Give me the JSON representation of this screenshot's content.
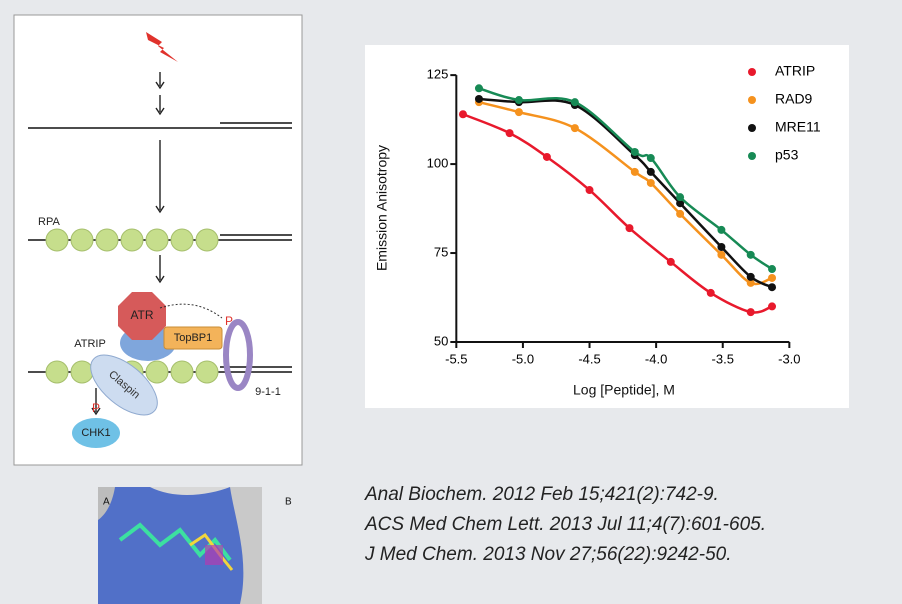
{
  "diagram": {
    "rpa": "RPA",
    "atr": "ATR",
    "atrip": "ATRIP",
    "topbp1": "TopBP1",
    "p_top": "P",
    "claspin": "Claspin",
    "p_bottom": "P",
    "chk1": "CHK1",
    "clamp": "9-1-1"
  },
  "chart_data": {
    "type": "scatter",
    "y_label": "Emission Anisotropy",
    "x_label": "Log [Peptide], M",
    "xlim": [
      -5.6,
      -2.95
    ],
    "ylim": [
      50,
      127
    ],
    "xticks": [
      -5.5,
      {
        "value": -5,
        "label": "-5.0"
      },
      -4.5,
      {
        "value": -4,
        "label": "-4.0"
      },
      -3.5,
      {
        "value": -3,
        "label": "-3.0"
      }
    ],
    "yticks": [
      50,
      75,
      100,
      125
    ],
    "legend": "top-right",
    "series": [
      {
        "name": "ATRIP",
        "color": "#e8192c",
        "x": [
          -5.45,
          -5.1,
          -4.82,
          -4.5,
          -4.2,
          -3.89,
          -3.59,
          -3.29,
          -3.13
        ],
        "values": [
          114,
          108.7,
          102,
          92.7,
          82,
          72.5,
          63.8,
          58.4,
          60
        ]
      },
      {
        "name": "RAD9",
        "color": "#f5921e",
        "x": [
          -5.33,
          -5.03,
          -4.61,
          -4.16,
          -4.04,
          -3.82,
          -3.51,
          -3.29,
          -3.13
        ],
        "values": [
          117.4,
          114.6,
          110.1,
          97.8,
          94.7,
          86,
          74.5,
          66.6,
          68
        ]
      },
      {
        "name": "MRE11",
        "color": "#111111",
        "x": [
          -5.33,
          -5.03,
          -4.61,
          -4.16,
          -4.04,
          -3.82,
          -3.51,
          -3.29,
          -3.13
        ],
        "values": [
          118.3,
          117.4,
          116.6,
          102.5,
          97.8,
          89,
          76.7,
          68.3,
          65.4
        ]
      },
      {
        "name": "p53",
        "color": "#178a55",
        "x": [
          -5.33,
          -5.03,
          -4.61,
          -4.16,
          -4.04,
          -3.82,
          -3.51,
          -3.29,
          -3.13
        ],
        "values": [
          121.3,
          118,
          117.4,
          103.4,
          101.7,
          90.7,
          81.5,
          74.5,
          70.5
        ]
      }
    ]
  },
  "image_labels": {
    "a": "A",
    "b": "B"
  },
  "citations": [
    "Anal Biochem. 2012 Feb 15;421(2):742-9.",
    "ACS Med Chem Lett. 2013 Jul 11;4(7):601-605.",
    "J Med Chem. 2013 Nov 27;56(22):9242-50."
  ]
}
